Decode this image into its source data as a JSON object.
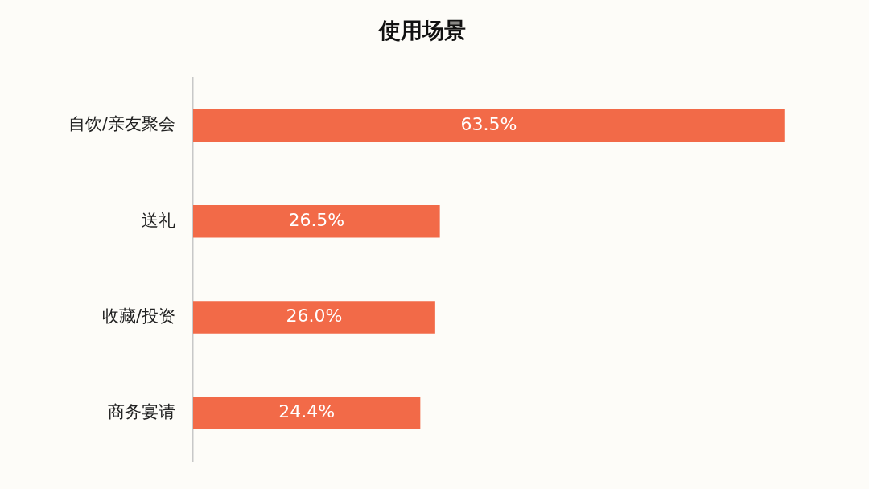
{
  "chart_data": {
    "type": "bar",
    "orientation": "horizontal",
    "title": "使用场景",
    "categories": [
      "自饮/亲友聚会",
      "送礼",
      "收藏/投资",
      "商务宴请"
    ],
    "series": [
      {
        "color": "#f26a48",
        "values": [
          63.5,
          26.5,
          26.0,
          24.4
        ],
        "value_labels": [
          "63.5%",
          "26.5%",
          "26.0%",
          "24.4%"
        ]
      }
    ],
    "tick_labels": "y"
  }
}
